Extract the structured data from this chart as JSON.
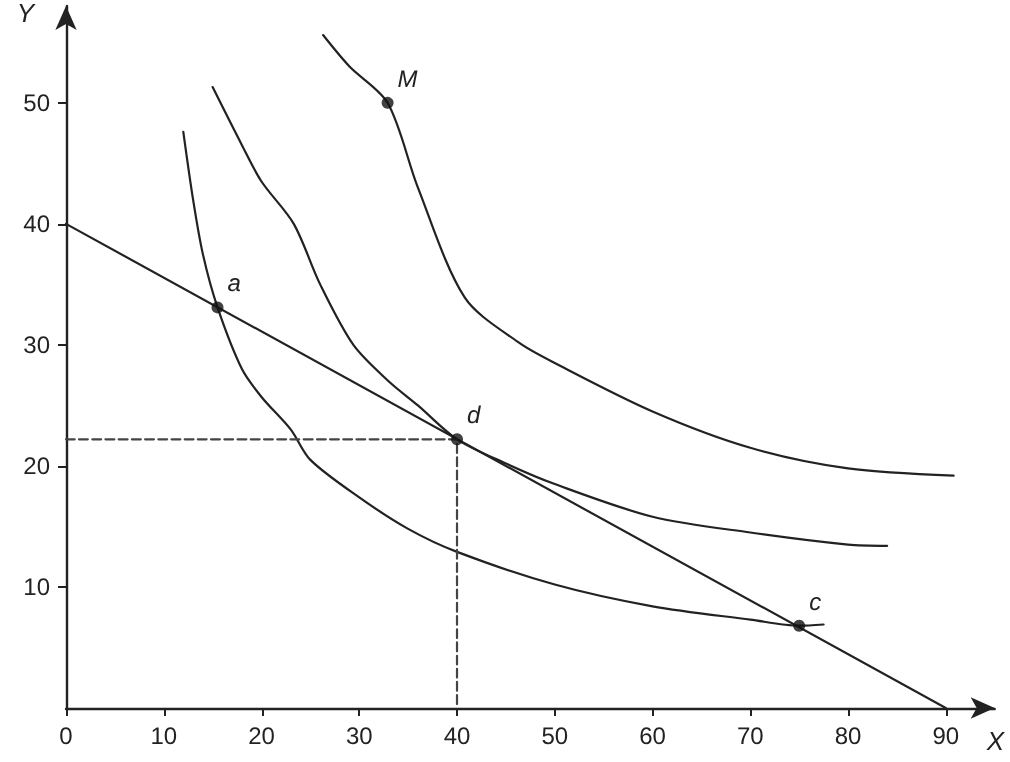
{
  "chart_data": {
    "type": "line",
    "xlabel": "X",
    "ylabel": "Y",
    "xlim": [
      0,
      95
    ],
    "xticks": [
      0,
      10,
      20,
      30,
      40,
      50,
      60,
      70,
      80,
      90
    ],
    "ylim": [
      0,
      58
    ],
    "yticks": [
      10,
      20,
      30,
      40,
      50
    ],
    "grid": false,
    "series": [
      {
        "color": "#222222",
        "marker": "none",
        "line_style": "solid",
        "x": [
          0,
          90
        ],
        "values": [
          40,
          0
        ]
      },
      {
        "color": "#222222",
        "marker": "none",
        "line_style": "solid",
        "x": [
          12,
          13,
          14,
          15.5,
          18,
          20,
          23,
          25,
          30,
          35,
          40,
          50,
          60,
          70,
          75,
          77.5
        ],
        "values": [
          47.6,
          42,
          37.5,
          33.1,
          28,
          25.7,
          23,
          20.5,
          17.4,
          14.8,
          12.9,
          10.2,
          8.4,
          7.3,
          6.8,
          6.9
        ]
      },
      {
        "color": "#222222",
        "marker": "none",
        "line_style": "solid",
        "x": [
          15,
          18,
          20,
          23.3,
          26,
          29.4,
          33,
          36,
          40,
          45,
          50,
          60,
          70,
          80,
          84
        ],
        "values": [
          51.3,
          46.5,
          43.5,
          40,
          35,
          30,
          27,
          25,
          22.2,
          20.2,
          18.5,
          15.8,
          14.5,
          13.5,
          13.4
        ]
      },
      {
        "color": "#222222",
        "marker": "none",
        "line_style": "solid",
        "x": [
          26.3,
          29,
          32.9,
          36,
          40.8,
          46.3,
          50,
          60,
          70,
          80,
          90.8
        ],
        "values": [
          55.6,
          53,
          50,
          43,
          33.9,
          30.2,
          28.5,
          24.5,
          21.5,
          19.8,
          19.2
        ]
      },
      {
        "color": "#444444",
        "marker": "none",
        "line_style": "dashed",
        "x": [
          0,
          40,
          40
        ],
        "values": [
          22.2,
          22.2,
          0
        ]
      },
      {
        "type": "scatter",
        "color": "#111111",
        "marker": "circle",
        "x": [
          15.5,
          40,
          75,
          32.9
        ],
        "values": [
          33.1,
          22.2,
          6.8,
          50
        ]
      }
    ],
    "annotations": [
      {
        "text": "a",
        "x": 15.5,
        "y": 33.1
      },
      {
        "text": "d",
        "x": 40,
        "y": 22.2
      },
      {
        "text": "c",
        "x": 75,
        "y": 6.8
      },
      {
        "text": "M",
        "x": 32.9,
        "y": 50
      }
    ]
  }
}
